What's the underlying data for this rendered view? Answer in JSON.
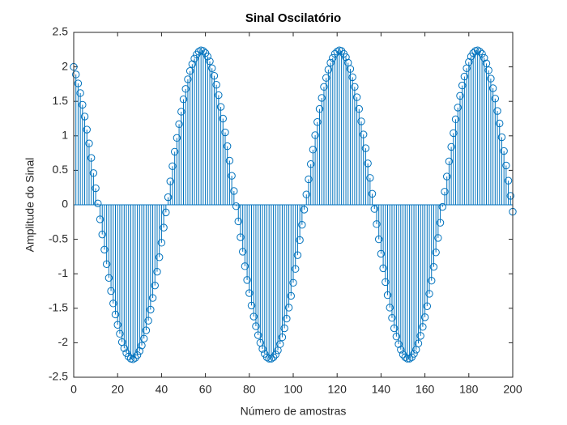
{
  "chart_data": {
    "type": "stem",
    "title": "Sinal Oscilatório",
    "xlabel": "Número de amostras",
    "ylabel": "Amplitude do Sinal",
    "color": "#0072BD",
    "grid": false,
    "xlim": [
      0,
      200
    ],
    "xticks": [
      0,
      20,
      40,
      60,
      80,
      100,
      120,
      140,
      160,
      180,
      200
    ],
    "ylim": [
      -2.5,
      2.5
    ],
    "yticks": [
      -2.5,
      -2,
      -1.5,
      -1,
      -0.5,
      0,
      0.5,
      1,
      1.5,
      2,
      2.5
    ],
    "x": [
      0,
      1,
      2,
      3,
      4,
      5,
      6,
      7,
      8,
      9,
      10,
      11,
      12,
      13,
      14,
      15,
      16,
      17,
      18,
      19,
      20,
      21,
      22,
      23,
      24,
      25,
      26,
      27,
      28,
      29,
      30,
      31,
      32,
      33,
      34,
      35,
      36,
      37,
      38,
      39,
      40,
      41,
      42,
      43,
      44,
      45,
      46,
      47,
      48,
      49,
      50,
      51,
      52,
      53,
      54,
      55,
      56,
      57,
      58,
      59,
      60,
      61,
      62,
      63,
      64,
      65,
      66,
      67,
      68,
      69,
      70,
      71,
      72,
      73,
      74,
      75,
      76,
      77,
      78,
      79,
      80,
      81,
      82,
      83,
      84,
      85,
      86,
      87,
      88,
      89,
      90,
      91,
      92,
      93,
      94,
      95,
      96,
      97,
      98,
      99,
      100,
      101,
      102,
      103,
      104,
      105,
      106,
      107,
      108,
      109,
      110,
      111,
      112,
      113,
      114,
      115,
      116,
      117,
      118,
      119,
      120,
      121,
      122,
      123,
      124,
      125,
      126,
      127,
      128,
      129,
      130,
      131,
      132,
      133,
      134,
      135,
      136,
      137,
      138,
      139,
      140,
      141,
      142,
      143,
      144,
      145,
      146,
      147,
      148,
      149,
      150,
      151,
      152,
      153,
      154,
      155,
      156,
      157,
      158,
      159,
      160,
      161,
      162,
      163,
      164,
      165,
      166,
      167,
      168,
      169,
      170,
      171,
      172,
      173,
      174,
      175,
      176,
      177,
      178,
      179,
      180,
      181,
      182,
      183,
      184,
      185,
      186,
      187,
      188,
      189,
      190,
      191,
      192,
      193,
      194,
      195,
      196,
      197,
      198,
      199,
      200
    ],
    "values": [
      2.0,
      1.89,
      1.76,
      1.62,
      1.45,
      1.28,
      1.09,
      0.89,
      0.68,
      0.46,
      0.24,
      0.02,
      -0.21,
      -0.43,
      -0.65,
      -0.86,
      -1.06,
      -1.25,
      -1.43,
      -1.59,
      -1.74,
      -1.87,
      -1.99,
      -2.08,
      -2.15,
      -2.2,
      -2.23,
      -2.24,
      -2.22,
      -2.18,
      -2.12,
      -2.04,
      -1.94,
      -1.82,
      -1.68,
      -1.52,
      -1.35,
      -1.17,
      -0.97,
      -0.76,
      -0.55,
      -0.33,
      -0.11,
      0.11,
      0.34,
      0.56,
      0.77,
      0.97,
      1.17,
      1.35,
      1.53,
      1.68,
      1.82,
      1.94,
      2.04,
      2.12,
      2.18,
      2.22,
      2.24,
      2.23,
      2.2,
      2.15,
      2.08,
      1.98,
      1.87,
      1.74,
      1.59,
      1.42,
      1.25,
      1.05,
      0.85,
      0.64,
      0.42,
      0.2,
      -0.02,
      -0.24,
      -0.47,
      -0.68,
      -0.89,
      -1.09,
      -1.28,
      -1.46,
      -1.62,
      -1.76,
      -1.89,
      -2.0,
      -2.09,
      -2.16,
      -2.21,
      -2.23,
      -2.23,
      -2.21,
      -2.17,
      -2.11,
      -2.02,
      -1.92,
      -1.79,
      -1.65,
      -1.49,
      -1.32,
      -1.13,
      -0.93,
      -0.73,
      -0.51,
      -0.29,
      -0.07,
      0.15,
      0.37,
      0.59,
      0.8,
      1.01,
      1.2,
      1.39,
      1.55,
      1.71,
      1.84,
      1.96,
      2.06,
      2.13,
      2.19,
      2.22,
      2.24,
      2.23,
      2.19,
      2.14,
      2.06,
      1.97,
      1.85,
      1.71,
      1.56,
      1.39,
      1.21,
      1.02,
      0.82,
      0.6,
      0.39,
      0.16,
      -0.06,
      -0.28,
      -0.5,
      -0.71,
      -0.92,
      -1.12,
      -1.31,
      -1.49,
      -1.64,
      -1.79,
      -1.91,
      -2.02,
      -2.1,
      -2.17,
      -2.21,
      -2.23,
      -2.23,
      -2.21,
      -2.16,
      -2.1,
      -2.01,
      -1.9,
      -1.77,
      -1.63,
      -1.47,
      -1.29,
      -1.1,
      -0.9,
      -0.69,
      -0.48,
      -0.26,
      -0.03,
      0.19,
      0.41,
      0.63,
      0.84,
      1.04,
      1.24,
      1.41,
      1.58,
      1.73,
      1.86,
      1.98,
      2.07,
      2.15,
      2.2,
      2.23,
      2.24,
      2.22,
      2.19,
      2.13,
      2.05,
      1.95,
      1.83,
      1.69,
      1.54,
      1.36,
      1.18,
      0.98,
      0.78,
      0.57,
      0.35,
      0.13,
      -0.1
    ]
  }
}
